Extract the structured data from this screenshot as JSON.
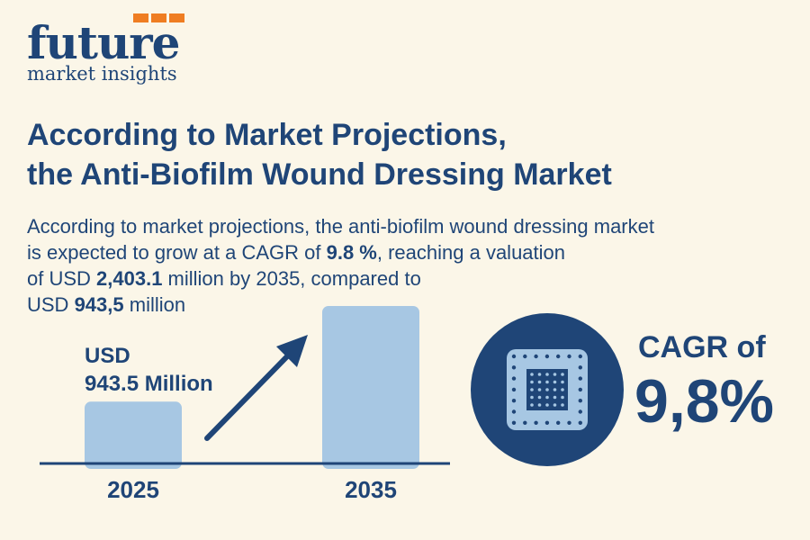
{
  "logo": {
    "word": "future",
    "sub": "market insights"
  },
  "headline": {
    "line1": "According to Market Projections,",
    "line2": "the Anti-Biofilm Wound Dressing Market"
  },
  "description": {
    "l1": "According to market projections, the anti-biofilm wound dressing market",
    "l2a": "is expected to grow at a CAGR of ",
    "l2b": "9.8 %",
    "l2c": ", reaching a valuation",
    "l3a": "of USD ",
    "l3b": "2,403.1",
    "l3c": " million by 2035, compared to",
    "l4a": "USD ",
    "l4b": "943,5",
    "l4c": " million"
  },
  "value_label": {
    "line1": "USD",
    "line2": "943.5 Million"
  },
  "cagr": {
    "label": "CAGR of",
    "value": "9,8%"
  },
  "colors": {
    "primary": "#1f4577",
    "bar": "#a7c7e3",
    "accent": "#ef7d22",
    "background": "#fbf6e8"
  },
  "icons": [
    "growth-arrow-icon",
    "dressing-patch-icon"
  ],
  "chart_data": {
    "type": "bar",
    "categories": [
      "2025",
      "2035"
    ],
    "values": [
      943.5,
      2403.1
    ],
    "title": "",
    "xlabel": "",
    "ylabel": "",
    "grid": false
  }
}
